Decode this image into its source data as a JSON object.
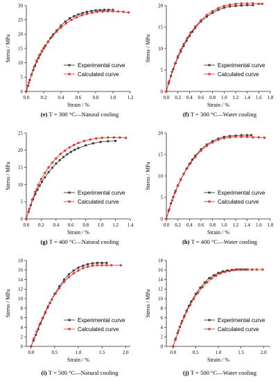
{
  "figure": {
    "legend": {
      "experimental": "Experimental curve",
      "calculated": "Calculated curve"
    },
    "colors": {
      "experimental": "#3a3a3a",
      "calculated": "#e8332b",
      "axis": "#222222"
    }
  },
  "chart_data": [
    {
      "type": "line",
      "caption_label": "(e)",
      "caption_text": "T = 300 °C—Natural cooling",
      "xlabel": "Strain / %",
      "ylabel": "Stress / MPa",
      "xlim": [
        0,
        1.2
      ],
      "ylim": [
        0,
        30
      ],
      "xticks": [
        "0.0",
        "0.2",
        "0.4",
        "0.6",
        "0.8",
        "1.0",
        "1.2"
      ],
      "yticks": [
        "0",
        "5",
        "10",
        "15",
        "20",
        "25",
        "30"
      ],
      "legend_position": "lower-right",
      "series": [
        {
          "name": "Experimental curve",
          "x": [
            0.0,
            0.02,
            0.04,
            0.06,
            0.08,
            0.1,
            0.12,
            0.14,
            0.16,
            0.18,
            0.2,
            0.22,
            0.25,
            0.28,
            0.31,
            0.35,
            0.4,
            0.45,
            0.5,
            0.55,
            0.6,
            0.65,
            0.7,
            0.75,
            0.8,
            0.85,
            0.9,
            0.95,
            1.0
          ],
          "y": [
            0.0,
            2.0,
            4.0,
            5.8,
            7.5,
            9.0,
            10.4,
            11.7,
            12.9,
            14.0,
            15.0,
            16.0,
            17.4,
            18.7,
            19.9,
            21.3,
            23.0,
            24.4,
            25.5,
            26.3,
            26.9,
            27.4,
            27.8,
            28.1,
            28.3,
            28.4,
            28.5,
            28.5,
            28.5
          ]
        },
        {
          "name": "Calculated curve",
          "x": [
            0.0,
            0.03,
            0.06,
            0.09,
            0.12,
            0.15,
            0.18,
            0.21,
            0.25,
            0.3,
            0.35,
            0.4,
            0.46,
            0.52,
            0.58,
            0.64,
            0.7,
            0.76,
            0.82,
            0.88,
            0.94,
            1.0,
            1.06,
            1.12,
            1.18
          ],
          "y": [
            0.0,
            3.1,
            6.0,
            8.6,
            10.8,
            12.6,
            14.2,
            15.6,
            17.3,
            19.2,
            20.9,
            22.3,
            23.8,
            25.0,
            25.9,
            26.6,
            27.1,
            27.5,
            27.8,
            27.9,
            28.0,
            28.0,
            27.9,
            27.8,
            27.6
          ]
        }
      ]
    },
    {
      "type": "line",
      "caption_label": "(f)",
      "caption_text": "T = 300 °C—Water cooling",
      "xlabel": "Strain / %",
      "ylabel": "Stress / MPa",
      "xlim": [
        0,
        1.8
      ],
      "ylim": [
        0,
        20
      ],
      "xticks": [
        "0.0",
        "0.2",
        "0.4",
        "0.6",
        "0.8",
        "1.0",
        "1.2",
        "1.4",
        "1.6",
        "1.8"
      ],
      "yticks": [
        "0",
        "5",
        "10",
        "15",
        "20"
      ],
      "legend_position": "lower-right",
      "series": [
        {
          "name": "Experimental curve",
          "x": [
            0.0,
            0.04,
            0.08,
            0.12,
            0.16,
            0.2,
            0.25,
            0.3,
            0.35,
            0.4,
            0.45,
            0.5,
            0.6,
            0.7,
            0.8,
            0.9,
            1.0,
            1.1,
            1.2,
            1.3,
            1.4,
            1.5
          ],
          "y": [
            0.0,
            1.9,
            3.6,
            5.2,
            6.6,
            7.9,
            9.3,
            10.6,
            11.8,
            12.9,
            13.9,
            14.8,
            16.3,
            17.4,
            18.3,
            19.0,
            19.5,
            19.8,
            19.9,
            20.0,
            20.1,
            20.1
          ]
        },
        {
          "name": "Calculated curve",
          "x": [
            0.0,
            0.05,
            0.1,
            0.15,
            0.2,
            0.25,
            0.3,
            0.36,
            0.42,
            0.5,
            0.6,
            0.7,
            0.8,
            0.9,
            1.0,
            1.1,
            1.2,
            1.3,
            1.4,
            1.5,
            1.6,
            1.66
          ],
          "y": [
            0.0,
            2.4,
            4.6,
            6.5,
            8.2,
            9.7,
            11.0,
            12.4,
            13.7,
            15.1,
            16.6,
            17.8,
            18.7,
            19.4,
            19.9,
            20.2,
            20.4,
            20.5,
            20.5,
            20.5,
            20.4,
            20.4
          ]
        }
      ]
    },
    {
      "type": "line",
      "caption_label": "(g)",
      "caption_text": "T = 400 °C—Natural cooling",
      "xlabel": "Strain / %",
      "ylabel": "Stress / MPa",
      "xlim": [
        0,
        1.4
      ],
      "ylim": [
        0,
        25
      ],
      "xticks": [
        "0.0",
        "0.2",
        "0.4",
        "0.6",
        "0.8",
        "1.0",
        "1.2",
        "1.4"
      ],
      "yticks": [
        "0",
        "5",
        "10",
        "15",
        "20",
        "25"
      ],
      "legend_position": "lower-right",
      "series": [
        {
          "name": "Experimental curve",
          "x": [
            0.0,
            0.03,
            0.06,
            0.09,
            0.12,
            0.15,
            0.18,
            0.21,
            0.25,
            0.3,
            0.35,
            0.4,
            0.45,
            0.5,
            0.55,
            0.6,
            0.65,
            0.7,
            0.8,
            0.9,
            1.0,
            1.1,
            1.2
          ],
          "y": [
            0.0,
            2.1,
            4.0,
            5.7,
            7.2,
            8.5,
            9.7,
            10.8,
            12.1,
            13.6,
            14.9,
            16.1,
            17.1,
            18.0,
            18.8,
            19.5,
            20.1,
            20.6,
            21.4,
            22.0,
            22.4,
            22.6,
            22.7
          ]
        },
        {
          "name": "Calculated curve",
          "x": [
            0.0,
            0.04,
            0.08,
            0.12,
            0.16,
            0.2,
            0.25,
            0.3,
            0.35,
            0.4,
            0.46,
            0.52,
            0.58,
            0.64,
            0.7,
            0.78,
            0.86,
            0.94,
            1.02,
            1.1,
            1.18,
            1.26,
            1.34
          ],
          "y": [
            0.0,
            2.9,
            5.6,
            7.9,
            9.9,
            11.6,
            13.4,
            15.0,
            16.4,
            17.6,
            18.9,
            19.9,
            20.8,
            21.5,
            22.1,
            22.7,
            23.1,
            23.4,
            23.6,
            23.7,
            23.7,
            23.7,
            23.6
          ]
        }
      ]
    },
    {
      "type": "line",
      "caption_label": "(h)",
      "caption_text": "T = 400 °C—Water cooling",
      "xlabel": "Strain / %",
      "ylabel": "Stress / MPa",
      "xlim": [
        0,
        1.8
      ],
      "ylim": [
        0,
        20
      ],
      "xticks": [
        "0.0",
        "0.2",
        "0.4",
        "0.6",
        "0.8",
        "1.0",
        "1.2",
        "1.4",
        "1.6",
        "1.8"
      ],
      "yticks": [
        "0",
        "5",
        "10",
        "15",
        "20"
      ],
      "legend_position": "lower-right",
      "series": [
        {
          "name": "Experimental curve",
          "x": [
            0.0,
            0.04,
            0.08,
            0.12,
            0.16,
            0.2,
            0.25,
            0.3,
            0.35,
            0.4,
            0.45,
            0.5,
            0.6,
            0.7,
            0.8,
            0.9,
            1.0,
            1.1,
            1.2,
            1.3,
            1.4,
            1.47
          ],
          "y": [
            0.0,
            1.9,
            3.6,
            5.1,
            6.5,
            7.8,
            9.2,
            10.5,
            11.7,
            12.8,
            13.8,
            14.7,
            16.2,
            17.3,
            18.1,
            18.7,
            19.1,
            19.3,
            19.4,
            19.5,
            19.5,
            19.5
          ]
        },
        {
          "name": "Calculated curve",
          "x": [
            0.0,
            0.05,
            0.1,
            0.15,
            0.2,
            0.25,
            0.3,
            0.36,
            0.42,
            0.5,
            0.6,
            0.7,
            0.8,
            0.9,
            1.0,
            1.1,
            1.2,
            1.3,
            1.4,
            1.5,
            1.6,
            1.7
          ],
          "y": [
            0.0,
            2.2,
            4.3,
            6.1,
            7.7,
            9.1,
            10.4,
            11.8,
            13.0,
            14.4,
            15.9,
            17.0,
            17.8,
            18.4,
            18.8,
            19.0,
            19.1,
            19.1,
            19.1,
            19.0,
            19.0,
            18.9
          ]
        }
      ]
    },
    {
      "type": "line",
      "caption_label": "(i)",
      "caption_text": "T = 500 °C—Natural cooling",
      "xlabel": "Strain / %",
      "ylabel": "Stress / MPa",
      "xlim": [
        -0.1,
        2.1
      ],
      "ylim": [
        0,
        18
      ],
      "xticks": [
        "0.0",
        "0.5",
        "1.0",
        "1.5",
        "2.0"
      ],
      "yticks": [
        "0",
        "2",
        "4",
        "6",
        "8",
        "10",
        "12",
        "14",
        "16",
        "18"
      ],
      "legend_position": "lower-right",
      "series": [
        {
          "name": "Experimental curve",
          "x": [
            0.0,
            0.05,
            0.1,
            0.15,
            0.2,
            0.25,
            0.3,
            0.35,
            0.4,
            0.5,
            0.6,
            0.7,
            0.8,
            0.9,
            1.0,
            1.1,
            1.2,
            1.3,
            1.4,
            1.5,
            1.6
          ],
          "y": [
            0.0,
            1.2,
            2.4,
            3.6,
            4.8,
            5.9,
            7.0,
            8.1,
            9.1,
            11.0,
            12.6,
            14.0,
            15.1,
            15.9,
            16.5,
            16.9,
            17.2,
            17.4,
            17.5,
            17.5,
            17.5
          ]
        },
        {
          "name": "Calculated curve",
          "x": [
            0.0,
            0.06,
            0.12,
            0.18,
            0.24,
            0.3,
            0.36,
            0.44,
            0.52,
            0.6,
            0.7,
            0.8,
            0.9,
            1.0,
            1.1,
            1.2,
            1.3,
            1.4,
            1.5,
            1.6,
            1.7,
            1.9
          ],
          "y": [
            0.0,
            1.6,
            3.1,
            4.6,
            5.9,
            7.2,
            8.4,
            9.8,
            11.1,
            12.2,
            13.5,
            14.5,
            15.3,
            15.9,
            16.4,
            16.7,
            16.9,
            17.0,
            17.0,
            17.0,
            17.0,
            17.0
          ]
        }
      ]
    },
    {
      "type": "line",
      "caption_label": "(j)",
      "caption_text": "T = 500 °C—Water cooling",
      "xlabel": "Strain / %",
      "ylabel": "Stress / MPa",
      "xlim": [
        -0.15,
        2.15
      ],
      "ylim": [
        0,
        18
      ],
      "xticks": [
        "0.0",
        "0.5",
        "1.0",
        "1.5",
        "2.0"
      ],
      "yticks": [
        "0",
        "2",
        "4",
        "6",
        "8",
        "10",
        "12",
        "14",
        "16",
        "18"
      ],
      "legend_position": "lower-right",
      "series": [
        {
          "name": "Experimental curve",
          "x": [
            0.0,
            0.05,
            0.1,
            0.15,
            0.2,
            0.25,
            0.3,
            0.35,
            0.4,
            0.5,
            0.6,
            0.7,
            0.8,
            0.9,
            1.0,
            1.1,
            1.2,
            1.3,
            1.4,
            1.5,
            1.6,
            1.75
          ],
          "y": [
            0.0,
            1.4,
            2.8,
            4.1,
            5.3,
            6.4,
            7.5,
            8.5,
            9.4,
            11.0,
            12.3,
            13.4,
            14.3,
            14.9,
            15.4,
            15.7,
            15.9,
            16.0,
            16.1,
            16.1,
            16.1,
            16.1
          ]
        },
        {
          "name": "Calculated curve",
          "x": [
            0.0,
            0.06,
            0.12,
            0.18,
            0.24,
            0.3,
            0.38,
            0.46,
            0.55,
            0.65,
            0.75,
            0.85,
            0.95,
            1.05,
            1.15,
            1.25,
            1.35,
            1.45,
            1.55,
            1.65,
            1.75,
            1.85,
            1.98
          ],
          "y": [
            0.0,
            1.7,
            3.3,
            4.8,
            6.1,
            7.3,
            8.7,
            10.0,
            11.2,
            12.4,
            13.4,
            14.2,
            14.8,
            15.3,
            15.6,
            15.8,
            16.0,
            16.1,
            16.1,
            16.1,
            16.1,
            16.1,
            16.1
          ]
        }
      ]
    }
  ]
}
